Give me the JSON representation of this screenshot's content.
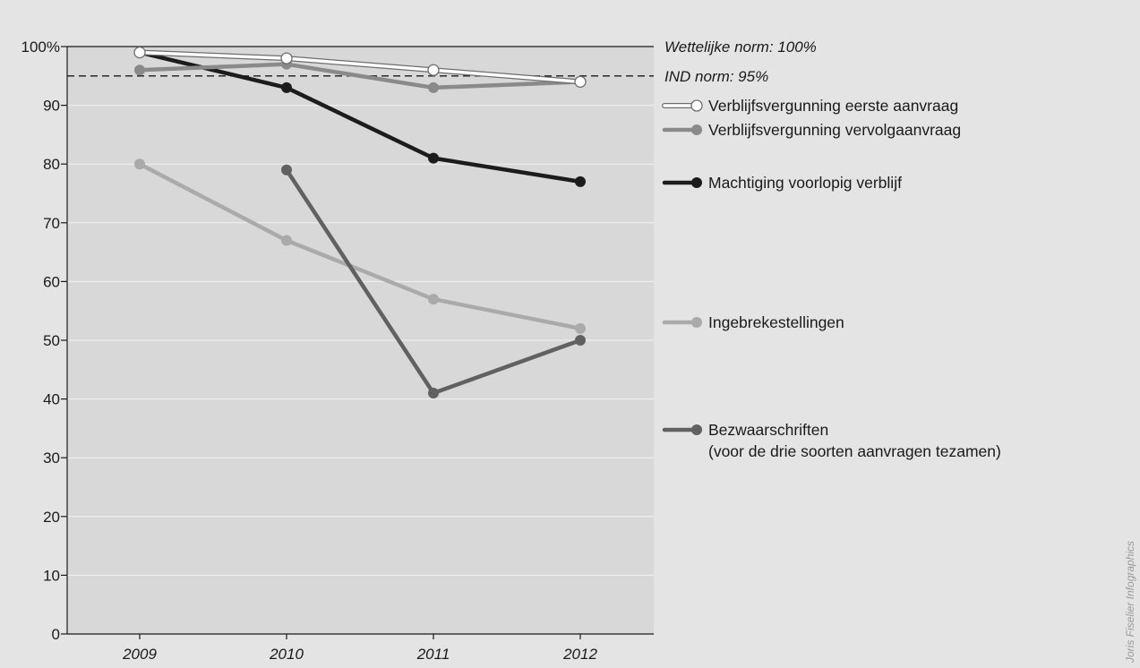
{
  "chart_data": {
    "type": "line",
    "x": [
      "2009",
      "2010",
      "2011",
      "2012"
    ],
    "ylim": [
      0,
      100
    ],
    "yticks": [
      0,
      10,
      20,
      30,
      40,
      50,
      60,
      70,
      80,
      90,
      100
    ],
    "ytick_labels": [
      "0",
      "10",
      "20",
      "30",
      "40",
      "50",
      "60",
      "70",
      "80",
      "90",
      "100%"
    ],
    "grid": true,
    "legend_position": "right",
    "norms": [
      {
        "label": "Wettelijke norm: 100%",
        "value": 100,
        "style": "solid"
      },
      {
        "label": "IND norm: 95%",
        "value": 95,
        "style": "dashed"
      }
    ],
    "series": [
      {
        "name": "Verblijfsvergunning eerste aanvraag",
        "legend_lines": [
          "Verblijfsvergunning eerste aanvraag"
        ],
        "values": [
          99,
          98,
          96,
          94
        ],
        "color": "#ffffff",
        "outline": "#6e6e6e"
      },
      {
        "name": "Verblijfsvergunning vervolgaanvraag",
        "legend_lines": [
          "Verblijfsvergunning vervolgaanvraag"
        ],
        "values": [
          96,
          97,
          93,
          94
        ],
        "color": "#8a8a8a"
      },
      {
        "name": "Machtiging voorlopig verblijf",
        "legend_lines": [
          "Machtiging voorlopig verblijf"
        ],
        "values": [
          99,
          93,
          81,
          77
        ],
        "color": "#1c1c1c"
      },
      {
        "name": "Ingebrekestellingen",
        "legend_lines": [
          "Ingebrekestellingen"
        ],
        "values": [
          80,
          67,
          57,
          52
        ],
        "color": "#aaaaaa"
      },
      {
        "name": "Bezwaarschriften (voor de drie soorten aanvragen tezamen)",
        "legend_lines": [
          "Bezwaarschriften",
          "(voor de drie soorten aanvragen tezamen)"
        ],
        "values": [
          null,
          79,
          41,
          50
        ],
        "color": "#616161"
      }
    ],
    "credit": "Joris Fiselier Infographics"
  }
}
